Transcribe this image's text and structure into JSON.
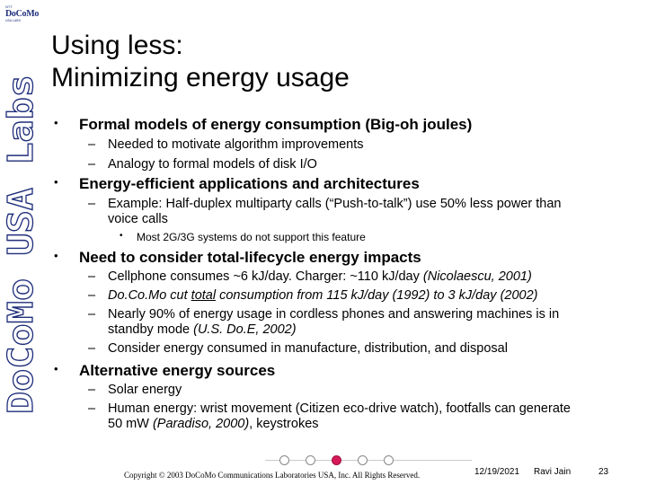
{
  "logo": {
    "top": "NTT",
    "main": "DoCoMo",
    "sub": "USA LABS"
  },
  "side_label": "DoCoMo USA Labs",
  "title": {
    "line1": "Using less:",
    "line2": "Minimizing energy usage"
  },
  "bullets": [
    {
      "text": "Formal models of energy consumption (Big-oh joules)",
      "subs": [
        "Needed to motivate algorithm improvements",
        "Analogy to formal models of disk I/O"
      ]
    },
    {
      "text": "Energy-efficient applications and architectures",
      "subs": [
        "Example: Half-duplex multiparty calls (“Push-to-talk”) use 50% less power than",
        "voice calls"
      ],
      "subsubs": [
        "Most 2G/3G systems do not support this feature"
      ]
    },
    {
      "text": "Need to consider total-lifecycle energy impacts",
      "subs": [
        {
          "a": "Cellphone consumes ~6 kJ/day.  Charger: ~110 kJ/day ",
          "b": "(Nicolaescu, 2001)"
        },
        {
          "a": "Do.Co.Mo cut ",
          "u": "total",
          "b": " consumption from 115 kJ/day (1992) to 3 kJ/day (2002)"
        },
        {
          "a": "Nearly 90% of energy usage in cordless phones and answering machines is in"
        },
        {
          "a": "standby mode ",
          "b": "(U.S. Do.E, 2002)"
        },
        {
          "a": "Consider energy consumed in manufacture, distribution, and disposal"
        }
      ]
    },
    {
      "text": "Alternative energy sources",
      "subs": [
        "Solar energy",
        "Human energy: wrist movement (Citizen eco-drive watch), footfalls can generate",
        {
          "a": "50 mW ",
          "b": "(Paradiso, 2000)",
          "c": ", keystrokes"
        }
      ]
    }
  ],
  "footer": {
    "copyright": "Copyright © 2003 DoCoMo Communications Laboratories USA, Inc.  All Rights Reserved.",
    "date": "12/19/2021",
    "author": "Ravi Jain",
    "page": "23"
  },
  "colors": {
    "brand": "#1f2e7a",
    "accent": "#d6185a"
  }
}
